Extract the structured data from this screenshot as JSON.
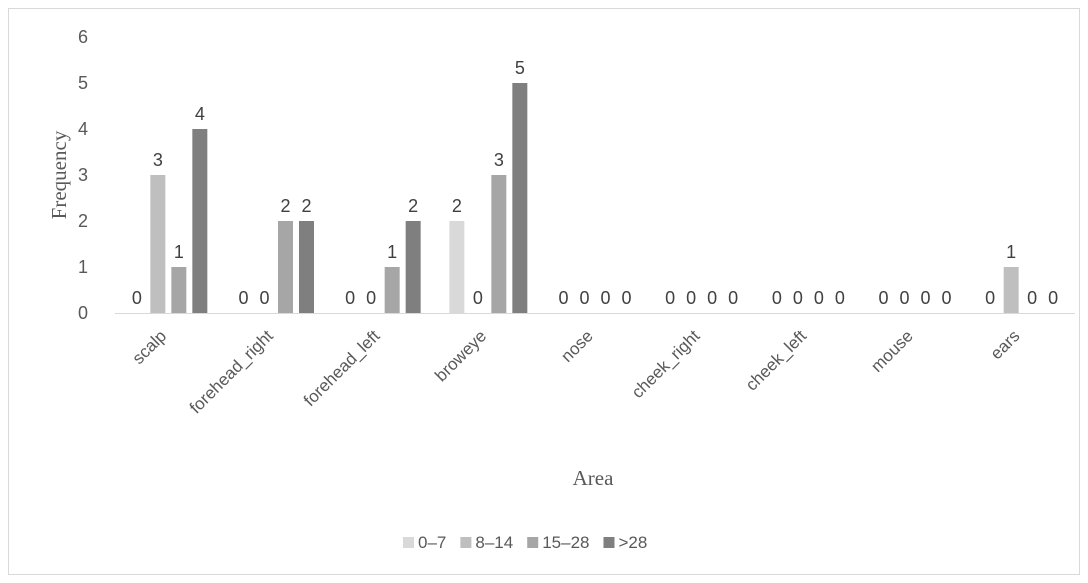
{
  "chart_data": {
    "type": "bar",
    "title": "",
    "xlabel": "Area",
    "ylabel": "Frequency",
    "ylim": [
      0,
      6
    ],
    "yticks": [
      0,
      1,
      2,
      3,
      4,
      5,
      6
    ],
    "grid": false,
    "legend_position": "bottom",
    "categories": [
      "scalp",
      "forehead_right",
      "forehead_left",
      "broweye",
      "nose",
      "cheek_right",
      "cheek_left",
      "mouse",
      "ears"
    ],
    "series": [
      {
        "name": "0–7",
        "color": "#d9d9d9",
        "values": [
          0,
          0,
          0,
          2,
          0,
          0,
          0,
          0,
          0
        ]
      },
      {
        "name": "8–14",
        "color": "#bfbfbf",
        "values": [
          3,
          0,
          0,
          0,
          0,
          0,
          0,
          0,
          1
        ]
      },
      {
        "name": "15–28",
        "color": "#a6a6a6",
        "values": [
          1,
          2,
          1,
          3,
          0,
          0,
          0,
          0,
          0
        ]
      },
      {
        "name": ">28",
        "color": "#7f7f7f",
        "values": [
          4,
          2,
          2,
          5,
          0,
          0,
          0,
          0,
          0
        ]
      }
    ]
  }
}
